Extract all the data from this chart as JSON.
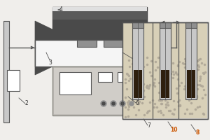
{
  "bg_color": "#f0eeeb",
  "line_color": "#555555",
  "dark_gray": "#4a4a4a",
  "mid_gray": "#909090",
  "light_gray": "#c8c8c8",
  "silver": "#b0b0b0",
  "white": "#ffffff",
  "dark_brown": "#2e1f0e",
  "sand_color": "#d8d0b8",
  "dot_color": "#b0a898",
  "furnace_top": "#5a5a5a",
  "furnace_shine": "#e0e0e0",
  "label_dark": "#333333",
  "label_orange": "#cc5500",
  "arrow_color": "#666666",
  "tube_white": "#f5f5f5",
  "controller_face": "#c0bdb8",
  "controller_border": "#888880"
}
